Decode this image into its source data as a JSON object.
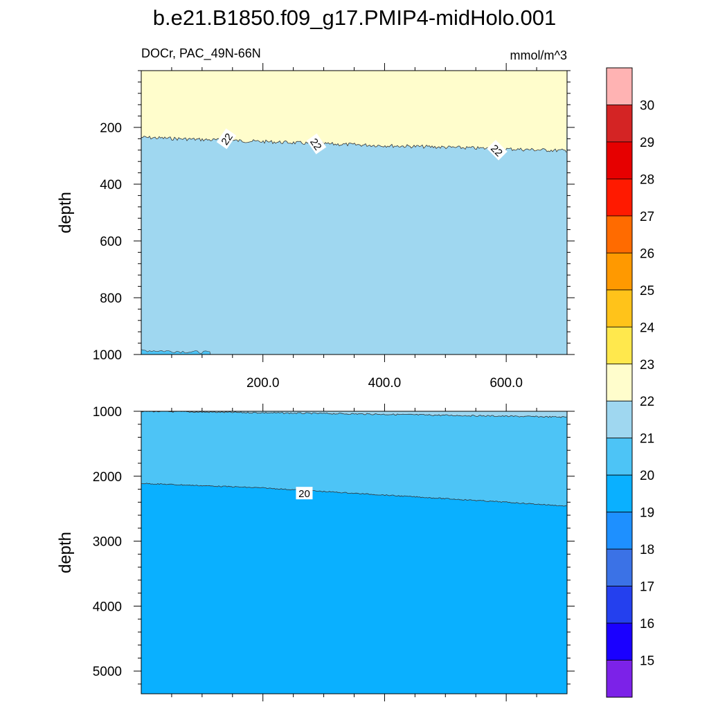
{
  "title": "b.e21.B1850.f09_g17.PMIP4-midHolo.001",
  "chart_data": [
    {
      "type": "contour",
      "panel": "upper",
      "variable_label": "DOCr, PAC_49N-66N",
      "units": "mmol/m^3",
      "ylabel": "depth",
      "xlabel": "",
      "xlim": [
        0,
        700
      ],
      "ylim": [
        0,
        1000
      ],
      "y_reversed": true,
      "xticks": [
        200,
        400,
        600
      ],
      "xtick_labels": [
        "200.0",
        "400.0",
        "600.0"
      ],
      "yticks": [
        200,
        400,
        600,
        800,
        1000
      ],
      "ytick_labels": [
        "200",
        "400",
        "600",
        "800",
        "1000"
      ],
      "contour_lines": [
        {
          "level": 22,
          "label": "22",
          "x": [
            0,
            100,
            200,
            300,
            400,
            500,
            600,
            700
          ],
          "depth": [
            235,
            243,
            250,
            258,
            264,
            270,
            276,
            282
          ]
        }
      ],
      "contour_labels": [
        {
          "text": "22",
          "x": 140,
          "depth": 240
        },
        {
          "text": "22",
          "x": 288,
          "depth": 258
        },
        {
          "text": "22",
          "x": 585,
          "depth": 280
        }
      ],
      "filled_regions": [
        {
          "range": [
            22,
            23
          ],
          "color": "#fffdcc",
          "depth_from": 0,
          "depth_to": "contour_22"
        },
        {
          "range": [
            21,
            22
          ],
          "color": "#9fd7f0",
          "depth_from": "contour_22",
          "depth_to": 1000
        }
      ]
    },
    {
      "type": "contour",
      "panel": "lower",
      "ylabel": "depth",
      "xlim": [
        0,
        700
      ],
      "ylim": [
        1000,
        5350
      ],
      "y_reversed": true,
      "yticks": [
        1000,
        2000,
        3000,
        4000,
        5000
      ],
      "ytick_labels": [
        "1000",
        "2000",
        "3000",
        "4000",
        "5000"
      ],
      "contour_lines": [
        {
          "level": 21,
          "label": "",
          "x": [
            0,
            350,
            700
          ],
          "depth": [
            1000,
            1040,
            1090
          ]
        },
        {
          "level": 20,
          "label": "20",
          "x": [
            0,
            200,
            400,
            600,
            700
          ],
          "depth": [
            2110,
            2180,
            2290,
            2400,
            2460
          ]
        }
      ],
      "contour_labels": [
        {
          "text": "20",
          "x": 268,
          "depth": 2260
        }
      ],
      "filled_regions": [
        {
          "range": [
            21,
            22
          ],
          "color": "#9fd7f0"
        },
        {
          "range": [
            20,
            21
          ],
          "color": "#4dc4f6"
        },
        {
          "range": [
            19,
            20
          ],
          "color": "#0ab0ff"
        }
      ]
    }
  ],
  "colorbar": {
    "levels": [
      "30",
      "29",
      "28",
      "27",
      "26",
      "25",
      "24",
      "23",
      "22",
      "21",
      "20",
      "19",
      "18",
      "17",
      "16",
      "15"
    ],
    "colors": [
      "#ffb3b3",
      "#d42424",
      "#e60000",
      "#ff1a00",
      "#ff6b00",
      "#ff9900",
      "#ffc31a",
      "#ffe84d",
      "#fffdcc",
      "#9fd7f0",
      "#4dc4f6",
      "#0ab0ff",
      "#1e90ff",
      "#3b72e6",
      "#2440ee",
      "#1a00ff",
      "#7c22e8"
    ]
  }
}
